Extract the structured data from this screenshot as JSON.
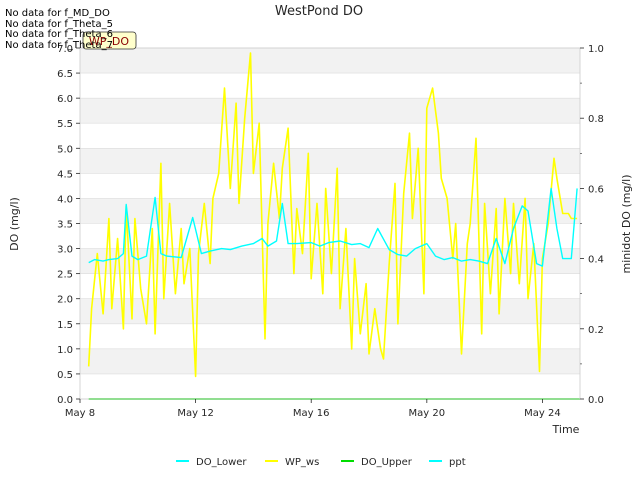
{
  "no_data_messages": [
    "No data for f_MD_DO",
    "No data for f_Theta_5",
    "No data for f_Theta_6",
    "No data for f_Theta_7"
  ],
  "chart_data": {
    "type": "line",
    "title": "WestPond DO",
    "xlabel": "Time",
    "ylabel": "DO (mg/l)",
    "ylabel_right": "minidot DO (mg/l)",
    "annotation": "WP_DO",
    "x_ticks": [
      "May 8",
      "May 12",
      "May 16",
      "May 20",
      "May 24"
    ],
    "x_tick_days": [
      8,
      12,
      16,
      20,
      24
    ],
    "xlim": [
      8,
      25.3
    ],
    "ylim": [
      0,
      7.0
    ],
    "y_ticks": [
      "0.0",
      "0.5",
      "1.0",
      "1.5",
      "2.0",
      "2.5",
      "3.0",
      "3.5",
      "4.0",
      "4.5",
      "5.0",
      "5.5",
      "6.0",
      "6.5",
      "7.0"
    ],
    "y_tick_values": [
      0,
      0.5,
      1,
      1.5,
      2,
      2.5,
      3,
      3.5,
      4,
      4.5,
      5,
      5.5,
      6,
      6.5,
      7
    ],
    "y2lim": [
      0,
      1.0
    ],
    "y2_ticks": [
      "0.0",
      "0.2",
      "0.4",
      "0.6",
      "0.8",
      "1.0"
    ],
    "y2_tick_values": [
      0,
      0.2,
      0.4,
      0.6,
      0.8,
      1.0
    ],
    "grid": true,
    "legend_position": "bottom",
    "series": [
      {
        "name": "DO_Lower",
        "color": "#00ffff",
        "x": [
          8.3,
          8.5,
          8.8,
          9.0,
          9.3,
          9.5,
          9.6,
          9.8,
          10.0,
          10.3,
          10.6,
          10.8,
          11.0,
          11.5,
          11.9,
          12.2,
          12.5,
          12.9,
          13.2,
          13.6,
          14.0,
          14.3,
          14.5,
          14.8,
          15.0,
          15.2,
          15.5,
          16.0,
          16.3,
          16.6,
          17.0,
          17.4,
          17.7,
          18.0,
          18.3,
          18.7,
          19.0,
          19.3,
          19.6,
          20.0,
          20.3,
          20.6,
          20.9,
          21.2,
          21.5,
          21.8,
          22.1,
          22.4,
          22.7,
          23.0,
          23.3,
          23.5,
          23.8,
          24.0,
          24.3,
          24.5,
          24.7,
          25.0,
          25.2
        ],
        "values": [
          2.72,
          2.78,
          2.75,
          2.78,
          2.8,
          2.9,
          3.88,
          2.85,
          2.78,
          2.85,
          4.02,
          2.9,
          2.85,
          2.82,
          3.62,
          2.9,
          2.95,
          3.0,
          2.98,
          3.05,
          3.1,
          3.2,
          3.05,
          3.15,
          3.9,
          3.1,
          3.1,
          3.12,
          3.05,
          3.12,
          3.15,
          3.08,
          3.1,
          3.02,
          3.4,
          2.98,
          2.88,
          2.85,
          3.0,
          3.1,
          2.85,
          2.78,
          2.82,
          2.75,
          2.78,
          2.75,
          2.7,
          3.2,
          2.7,
          3.4,
          3.85,
          3.75,
          2.7,
          2.65,
          4.2,
          3.4,
          2.8,
          2.8,
          4.2
        ]
      },
      {
        "name": "WP_ws",
        "color": "#ffff00",
        "x": [
          8.3,
          8.4,
          8.6,
          8.8,
          9.0,
          9.1,
          9.3,
          9.5,
          9.6,
          9.8,
          9.9,
          10.1,
          10.3,
          10.5,
          10.6,
          10.8,
          10.9,
          11.1,
          11.3,
          11.5,
          11.6,
          11.8,
          12.0,
          12.1,
          12.3,
          12.5,
          12.6,
          12.8,
          13.0,
          13.2,
          13.4,
          13.5,
          13.7,
          13.9,
          14.0,
          14.2,
          14.4,
          14.5,
          14.7,
          14.9,
          15.0,
          15.2,
          15.4,
          15.5,
          15.7,
          15.9,
          16.0,
          16.2,
          16.4,
          16.5,
          16.7,
          16.9,
          17.0,
          17.2,
          17.4,
          17.5,
          17.7,
          17.9,
          18.0,
          18.2,
          18.4,
          18.5,
          18.7,
          18.9,
          19.0,
          19.2,
          19.4,
          19.5,
          19.7,
          19.9,
          20.0,
          20.2,
          20.4,
          20.5,
          20.7,
          20.9,
          21.0,
          21.2,
          21.4,
          21.5,
          21.7,
          21.9,
          22.0,
          22.2,
          22.4,
          22.5,
          22.7,
          22.9,
          23.0,
          23.2,
          23.4,
          23.5,
          23.7,
          23.9,
          24.0,
          24.2,
          24.4,
          24.5,
          24.7,
          24.9,
          25.0,
          25.2
        ],
        "values": [
          0.65,
          1.8,
          2.9,
          1.7,
          3.6,
          1.8,
          3.2,
          1.4,
          3.85,
          1.6,
          3.6,
          2.2,
          1.5,
          3.4,
          1.3,
          4.7,
          2.0,
          3.9,
          2.1,
          3.4,
          2.3,
          3.0,
          0.45,
          2.9,
          3.9,
          2.7,
          4.0,
          4.5,
          6.2,
          4.2,
          5.9,
          3.9,
          5.6,
          6.9,
          4.5,
          5.5,
          1.2,
          3.5,
          4.7,
          3.6,
          4.6,
          5.4,
          2.5,
          3.8,
          2.9,
          4.9,
          2.4,
          3.9,
          2.1,
          4.2,
          2.5,
          4.6,
          1.8,
          3.4,
          1.0,
          2.8,
          1.3,
          2.3,
          0.9,
          1.8,
          1.0,
          0.8,
          2.7,
          4.3,
          1.5,
          4.1,
          5.3,
          3.6,
          5.0,
          2.1,
          5.8,
          6.2,
          5.3,
          4.4,
          4.0,
          2.8,
          3.5,
          0.9,
          3.1,
          3.5,
          5.2,
          1.3,
          3.9,
          2.1,
          3.8,
          1.7,
          4.0,
          2.5,
          3.9,
          2.3,
          4.0,
          2.0,
          3.1,
          0.55,
          2.8,
          3.5,
          4.8,
          4.4,
          3.7,
          3.7,
          3.6,
          3.6
        ]
      },
      {
        "name": "DO_Upper",
        "color": "#00dd00",
        "x": [
          8.3,
          25.3
        ],
        "values": [
          0,
          0
        ]
      },
      {
        "name": "ppt",
        "color": "#00ffff",
        "x": [],
        "values": []
      }
    ]
  }
}
